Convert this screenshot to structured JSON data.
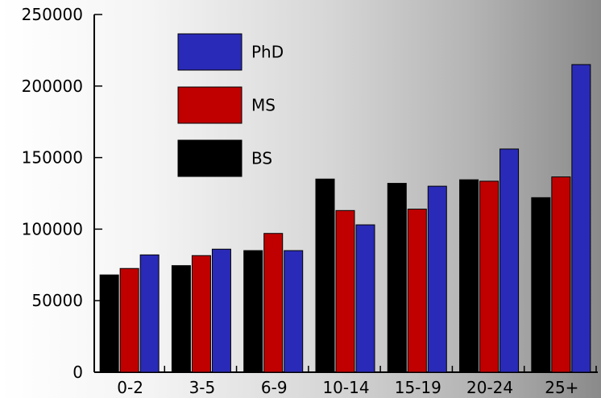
{
  "chart_data": {
    "type": "bar",
    "title": "",
    "xlabel": "",
    "ylabel": "",
    "categories": [
      "0-2",
      "3-5",
      "6-9",
      "10-14",
      "15-19",
      "20-24",
      "25+"
    ],
    "ylim": [
      0,
      250000
    ],
    "yticks": [
      0,
      50000,
      100000,
      150000,
      200000,
      250000
    ],
    "ytick_labels": [
      "0",
      "50000",
      "100000",
      "150000",
      "200000",
      "250000"
    ],
    "grid": false,
    "legend_position": "top-left",
    "series": [
      {
        "name": "BS",
        "color": "#000000",
        "values": [
          68000,
          74500,
          85000,
          135000,
          132000,
          134500,
          122000
        ]
      },
      {
        "name": "MS",
        "color": "#c00000",
        "values": [
          72500,
          81500,
          97000,
          113000,
          114000,
          133500,
          136500
        ]
      },
      {
        "name": "PhD",
        "color": "#2a2ab8",
        "values": [
          82000,
          86000,
          85000,
          103000,
          130000,
          156000,
          215000
        ]
      }
    ],
    "legend_order": [
      "PhD",
      "MS",
      "BS"
    ]
  }
}
